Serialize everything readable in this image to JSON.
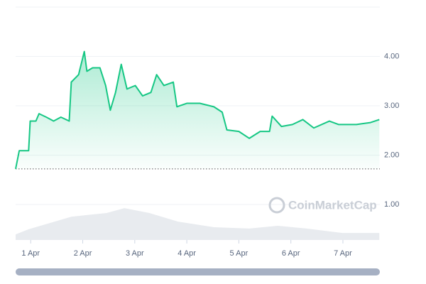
{
  "chart_data": {
    "type": "line",
    "x": [
      0.71,
      0.78,
      0.96,
      0.99,
      1.1,
      1.16,
      1.3,
      1.44,
      1.58,
      1.74,
      1.78,
      1.92,
      2.03,
      2.08,
      2.19,
      2.33,
      2.44,
      2.53,
      2.63,
      2.74,
      2.85,
      3.01,
      3.15,
      3.31,
      3.42,
      3.56,
      3.74,
      3.81,
      4.0,
      4.25,
      4.52,
      4.68,
      4.77,
      5.0,
      5.2,
      5.41,
      5.59,
      5.64,
      5.82,
      6.03,
      6.23,
      6.44,
      6.74,
      6.92,
      7.26,
      7.53,
      7.7
    ],
    "series": [
      {
        "name": "Price",
        "color": "#16c784",
        "values": [
          1.72,
          2.09,
          2.09,
          2.69,
          2.69,
          2.84,
          2.77,
          2.69,
          2.77,
          2.69,
          3.48,
          3.63,
          4.1,
          3.7,
          3.77,
          3.77,
          3.41,
          2.91,
          3.27,
          3.84,
          3.34,
          3.41,
          3.2,
          3.27,
          3.63,
          3.41,
          3.48,
          2.98,
          3.05,
          3.05,
          2.98,
          2.87,
          2.51,
          2.48,
          2.34,
          2.48,
          2.48,
          2.79,
          2.58,
          2.62,
          2.72,
          2.55,
          2.69,
          2.62,
          2.62,
          2.66,
          2.72
        ]
      },
      {
        "name": "Volume",
        "color": "#e8ebef",
        "axis": "y2",
        "x": [
          0.71,
          0.96,
          1.78,
          2.46,
          2.8,
          3.28,
          3.83,
          4.52,
          5.2,
          5.75,
          6.3,
          6.99,
          7.7
        ],
        "values": [
          0.24,
          0.46,
          1.0,
          1.16,
          1.37,
          1.16,
          0.79,
          0.55,
          0.49,
          0.61,
          0.49,
          0.3,
          0.3
        ]
      }
    ],
    "baseline": 1.72,
    "xlim": [
      0.71,
      7.71
    ],
    "xticks": [
      {
        "value": 1,
        "label": "1 Apr"
      },
      {
        "value": 2,
        "label": "2 Apr"
      },
      {
        "value": 3,
        "label": "3 Apr"
      },
      {
        "value": 4,
        "label": "4 Apr"
      },
      {
        "value": 5,
        "label": "5 Apr"
      },
      {
        "value": 6,
        "label": "6 Apr"
      },
      {
        "value": 7,
        "label": "7 Apr"
      }
    ],
    "ylim": [
      0.28,
      5
    ],
    "yticks": [
      {
        "value": 1,
        "label": "1.00"
      },
      {
        "value": 2,
        "label": "2.00"
      },
      {
        "value": 3,
        "label": "3.00"
      },
      {
        "value": 4,
        "label": "4.00"
      }
    ],
    "y2lim": [
      0,
      10
    ],
    "grid": true,
    "watermark": "CoinMarketCap"
  }
}
